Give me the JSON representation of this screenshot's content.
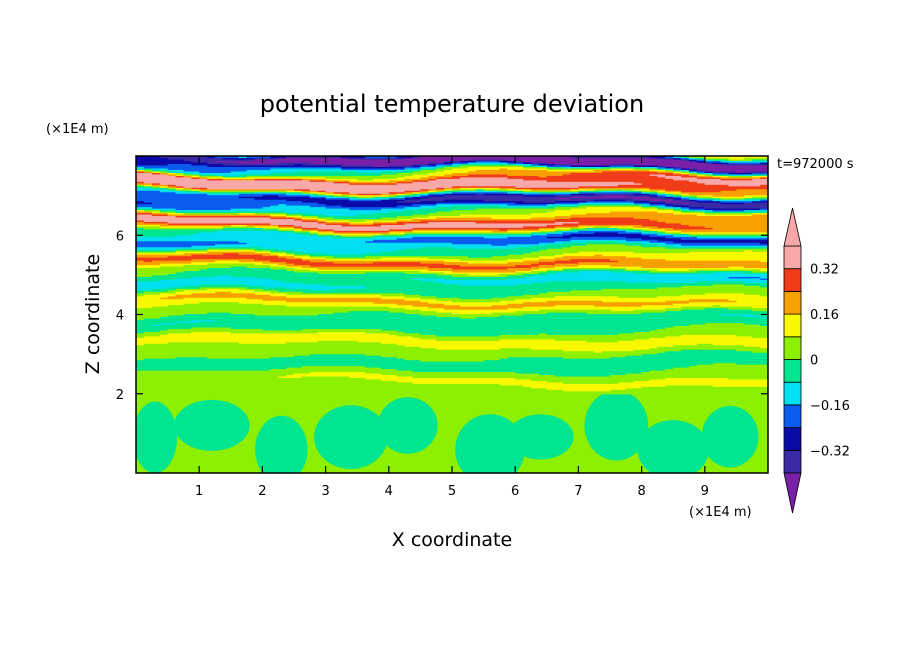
{
  "chart_data": {
    "type": "heatmap",
    "subtype": "filled-contour",
    "title": "potential temperature deviation",
    "xlabel": "X coordinate",
    "ylabel": "Z coordinate",
    "x_units": "(×1E4 m)",
    "y_units": "(×1E4 m)",
    "time_label": "t=972000 s",
    "xlim": [
      0,
      10
    ],
    "ylim": [
      0,
      8
    ],
    "x_ticks": [
      1,
      2,
      3,
      4,
      5,
      6,
      7,
      8,
      9
    ],
    "x_tick_labels": [
      "1",
      "2",
      "3",
      "4",
      "5",
      "6",
      "7",
      "8",
      "9"
    ],
    "y_ticks": [
      2,
      4,
      6
    ],
    "y_tick_labels": [
      "2",
      "4",
      "6"
    ],
    "colorbar": {
      "levels": [
        -0.4,
        -0.32,
        -0.24,
        -0.16,
        -0.08,
        0,
        0.08,
        0.16,
        0.24,
        0.32,
        0.4
      ],
      "labels": [
        "0.32",
        "0.16",
        "0",
        "−0.16",
        "−0.32"
      ],
      "label_values": [
        0.32,
        0.16,
        0,
        -0.16,
        -0.32
      ],
      "colors": [
        "#7a1fa8",
        "#3a2aa8",
        "#0a0aa8",
        "#0a5cf0",
        "#00e0f0",
        "#00e690",
        "#8cf000",
        "#f8f800",
        "#f8a000",
        "#f03c18",
        "#f8a8a8"
      ],
      "extend": "both"
    },
    "field_description_values": {
      "lower_layer_z_range": [
        0,
        2
      ],
      "lower_layer_levels": [
        0,
        0.08
      ],
      "upper_layer_z_range": [
        2,
        8
      ],
      "band_amplitude_increases_with_height": true
    }
  }
}
